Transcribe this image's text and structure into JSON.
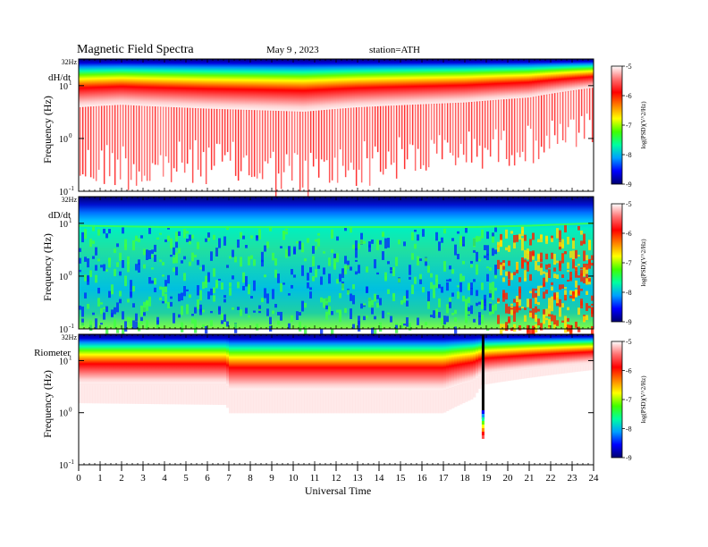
{
  "header": {
    "title": "Magnetic  Field  Spectra",
    "date": "May 9  , 2023",
    "station": "station=ATH"
  },
  "chart_data": {
    "type": "heatmap",
    "x_axis": {
      "label": "Universal  Time",
      "range": [
        0,
        24
      ],
      "ticks": [
        "0",
        "1",
        "2",
        "3",
        "4",
        "5",
        "6",
        "7",
        "8",
        "9",
        "10",
        "11",
        "12",
        "13",
        "14",
        "15",
        "16",
        "17",
        "18",
        "19",
        "20",
        "21",
        "22",
        "23",
        "24"
      ]
    },
    "y_axis": {
      "label": "Frequency  (Hz)",
      "scale": "log",
      "range": [
        0.1,
        32
      ],
      "top_label": "32Hz",
      "tick_labels": {
        "ten": "10",
        "one": "10",
        "tenth": "10"
      },
      "tick_exponents": {
        "ten": "1",
        "one": "0",
        "tenth": "-1"
      }
    },
    "colorbar": {
      "label": "log(PSD)(V^2/Hz)",
      "range": [
        -9,
        -5
      ],
      "ticks": [
        "-5",
        "-6",
        "-7",
        "-8",
        "-9"
      ],
      "colors": [
        "#000070",
        "#0000ff",
        "#00a0ff",
        "#00ffa0",
        "#40ff00",
        "#ffff00",
        "#ff8000",
        "#ff0000",
        "#ff9090",
        "#ffffff"
      ]
    },
    "panels": [
      {
        "name": "dH/dt",
        "profile": [
          {
            "t": 0,
            "f": 8.5,
            "depth": 0.85
          },
          {
            "t": 2,
            "f": 9.5,
            "depth": 0.8
          },
          {
            "t": 3,
            "f": 9,
            "depth": 0.9
          },
          {
            "t": 6,
            "f": 8,
            "depth": 0.75
          },
          {
            "t": 10.5,
            "f": 7,
            "depth": 0.95
          },
          {
            "t": 13,
            "f": 8.5,
            "depth": 0.8
          },
          {
            "t": 18,
            "f": 10.5,
            "depth": 0.65
          },
          {
            "t": 21,
            "f": 13,
            "depth": 0.6
          },
          {
            "t": 24,
            "f": 20,
            "depth": 0.5
          }
        ]
      },
      {
        "name": "dD/dt",
        "profile": [
          {
            "t": 0,
            "f": 9,
            "level": 0.45
          },
          {
            "t": 4,
            "f": 8.5,
            "level": 0.4
          },
          {
            "t": 10,
            "f": 8.5,
            "level": 0.3
          },
          {
            "t": 13,
            "f": 8.5,
            "level": 0.4
          },
          {
            "t": 16,
            "f": 8.5,
            "level": 0.3
          },
          {
            "t": 18.5,
            "f": 8.5,
            "level": 0.5
          },
          {
            "t": 21,
            "f": 9,
            "level": 0.75
          },
          {
            "t": 24,
            "f": 10,
            "level": 0.85
          }
        ]
      },
      {
        "name": "Riometer",
        "profile": [
          {
            "t": 0,
            "f": 8,
            "depth": 0.55
          },
          {
            "t": 6.9,
            "f": 8,
            "depth": 0.6
          },
          {
            "t": 7,
            "f": 6,
            "depth": 0.65
          },
          {
            "t": 17,
            "f": 6,
            "depth": 0.65
          },
          {
            "t": 18.4,
            "f": 9,
            "depth": 0.5
          },
          {
            "t": 18.8,
            "f": 12,
            "depth": 0.3
          },
          {
            "t": 24,
            "f": 20,
            "depth": 0.2
          }
        ]
      }
    ]
  }
}
